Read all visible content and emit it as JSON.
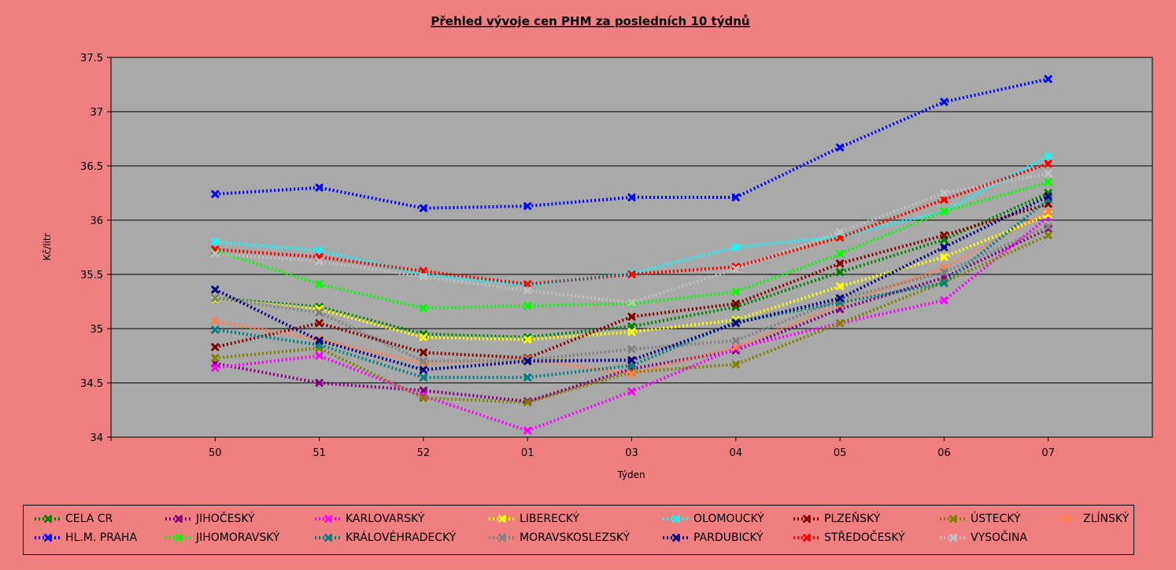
{
  "chart_data": {
    "type": "line",
    "title": "Přehled vývoje cen PHM za posledních 10 týdnů",
    "xlabel": "Týden",
    "ylabel": "Kč/litr",
    "categories": [
      "50",
      "51",
      "52",
      "01",
      "03",
      "04",
      "05",
      "06",
      "07"
    ],
    "ylim": [
      34,
      37.5
    ],
    "yticks": [
      "34",
      "34.5",
      "35",
      "35.5",
      "36",
      "36.5",
      "37",
      "37.5"
    ],
    "grid": true,
    "legend_position": "bottom",
    "series": [
      {
        "name": "CELA CR",
        "color": "#008000",
        "values": [
          35.28,
          35.2,
          34.95,
          34.92,
          35.02,
          35.2,
          35.52,
          35.82,
          36.25
        ]
      },
      {
        "name": "JIHOČESKÝ",
        "color": "#800080",
        "values": [
          34.68,
          34.5,
          34.43,
          34.33,
          34.63,
          34.8,
          35.18,
          35.47,
          35.92
        ]
      },
      {
        "name": "KARLOVARSKÝ",
        "color": "#ff00ff",
        "values": [
          34.64,
          34.75,
          34.38,
          34.06,
          34.42,
          34.82,
          35.05,
          35.26,
          36.03
        ]
      },
      {
        "name": "LIBERECKÝ",
        "color": "#ffff00",
        "values": [
          35.27,
          35.18,
          34.92,
          34.9,
          34.97,
          35.08,
          35.39,
          35.66,
          36.05
        ]
      },
      {
        "name": "OLOMOUCKÝ",
        "color": "#00ffff",
        "values": [
          35.8,
          35.72,
          35.5,
          35.4,
          35.51,
          35.75,
          35.85,
          36.08,
          36.59
        ]
      },
      {
        "name": "PLZEŇSKÝ",
        "color": "#800000",
        "values": [
          34.83,
          35.05,
          34.78,
          34.73,
          35.11,
          35.23,
          35.6,
          35.86,
          36.15
        ]
      },
      {
        "name": "ÚSTECKÝ",
        "color": "#808000",
        "values": [
          34.73,
          34.82,
          34.36,
          34.32,
          34.6,
          34.67,
          35.05,
          35.43,
          35.86
        ]
      },
      {
        "name": "ZLÍNSKÝ",
        "color": "#ff7f50",
        "values": [
          35.07,
          34.9,
          34.68,
          34.72,
          34.58,
          34.83,
          35.22,
          35.56,
          36.08
        ]
      },
      {
        "name": "HL.M. PRAHA",
        "color": "#0000ff",
        "values": [
          36.24,
          36.3,
          36.11,
          36.13,
          36.21,
          36.21,
          36.67,
          37.09,
          37.3
        ]
      },
      {
        "name": "JIHOMORAVSKÝ",
        "color": "#00ff00",
        "values": [
          35.72,
          35.41,
          35.19,
          35.21,
          35.23,
          35.34,
          35.69,
          36.08,
          36.35
        ]
      },
      {
        "name": "KRÁLOVÉHRADECKÝ",
        "color": "#008080",
        "values": [
          34.99,
          34.85,
          34.55,
          34.55,
          34.66,
          35.06,
          35.24,
          35.42,
          36.19
        ]
      },
      {
        "name": "MORAVSKOSLEZSKÝ",
        "color": "#808080",
        "values": [
          35.28,
          35.15,
          34.7,
          34.71,
          34.81,
          34.89,
          35.27,
          35.52,
          35.94
        ]
      },
      {
        "name": "PARDUBICKÝ",
        "color": "#000080",
        "values": [
          35.36,
          34.89,
          34.62,
          34.7,
          34.71,
          35.05,
          35.28,
          35.75,
          36.22
        ]
      },
      {
        "name": "STŘEDOČESKÝ",
        "color": "#ff0000",
        "values": [
          35.73,
          35.66,
          35.53,
          35.41,
          35.5,
          35.57,
          35.84,
          36.19,
          36.52
        ]
      },
      {
        "name": "VYSOČINA",
        "color": "#c0c0c0",
        "values": [
          35.69,
          35.62,
          35.48,
          35.35,
          35.24,
          35.55,
          35.89,
          36.25,
          36.43
        ]
      }
    ]
  }
}
